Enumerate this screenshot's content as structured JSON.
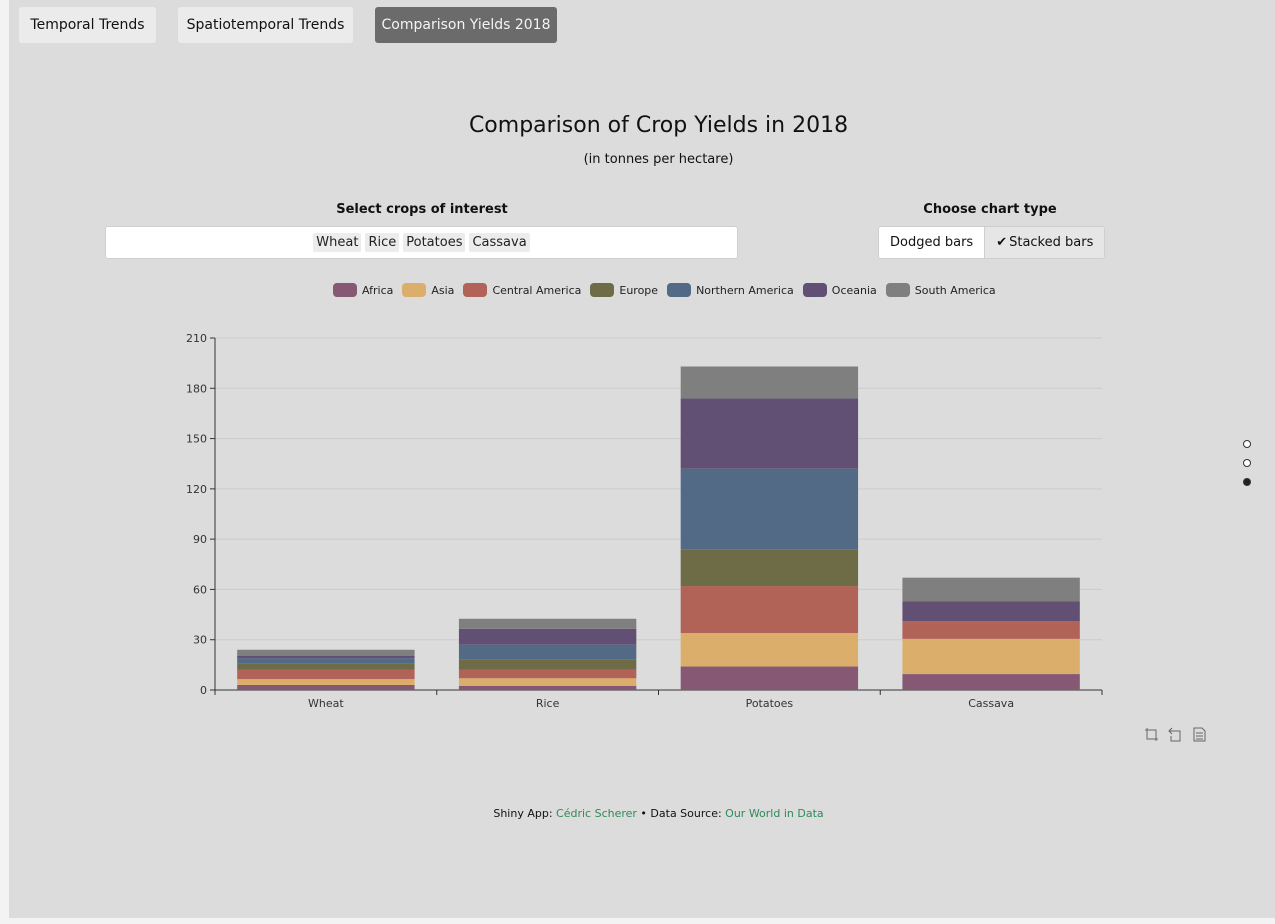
{
  "tabs": [
    {
      "label": "Temporal Trends",
      "active": false
    },
    {
      "label": "Spatiotemporal Trends",
      "active": false
    },
    {
      "label": "Comparison Yields 2018",
      "active": true
    }
  ],
  "header": {
    "title": "Comparison of Crop Yields in 2018",
    "subtitle": "(in tonnes per hectare)"
  },
  "crop_selector": {
    "label": "Select crops of interest",
    "selected": [
      "Wheat",
      "Rice",
      "Potatoes",
      "Cassava"
    ]
  },
  "chart_type": {
    "label": "Choose chart type",
    "options": [
      "Dodged bars",
      "Stacked bars"
    ],
    "selected": "Stacked bars",
    "check_icon": "✔"
  },
  "toolbox": [
    "zoom-icon",
    "zoom-reset-icon",
    "data-view-icon"
  ],
  "page_dots": {
    "count": 3,
    "active_index": 2
  },
  "footer": {
    "app_prefix": "Shiny App: ",
    "author": "Cédric Scherer",
    "separator": " • Data Source: ",
    "source": "Our World in Data"
  },
  "chart_data": {
    "type": "bar",
    "stacked": true,
    "categories": [
      "Wheat",
      "Rice",
      "Potatoes",
      "Cassava"
    ],
    "ylim": [
      0,
      210
    ],
    "yticks": [
      0,
      30,
      60,
      90,
      120,
      150,
      180,
      210
    ],
    "grid": true,
    "legend_position": "top",
    "series": [
      {
        "name": "Africa",
        "color": "#875874",
        "values": [
          3,
          2.5,
          14,
          9.5
        ]
      },
      {
        "name": "Asia",
        "color": "#dcae6b",
        "values": [
          3.5,
          4.5,
          20,
          21
        ]
      },
      {
        "name": "Central America",
        "color": "#b06356",
        "values": [
          5.5,
          5,
          28,
          10.5
        ]
      },
      {
        "name": "Europe",
        "color": "#6e6b47",
        "values": [
          4,
          6,
          22,
          0
        ]
      },
      {
        "name": "Northern America",
        "color": "#526a85",
        "values": [
          3,
          9,
          48,
          0
        ]
      },
      {
        "name": "Oceania",
        "color": "#624f74",
        "values": [
          1.5,
          9.5,
          42,
          12
        ]
      },
      {
        "name": "South America",
        "color": "#7f7f7f",
        "values": [
          3.5,
          6,
          19,
          14
        ]
      }
    ]
  }
}
